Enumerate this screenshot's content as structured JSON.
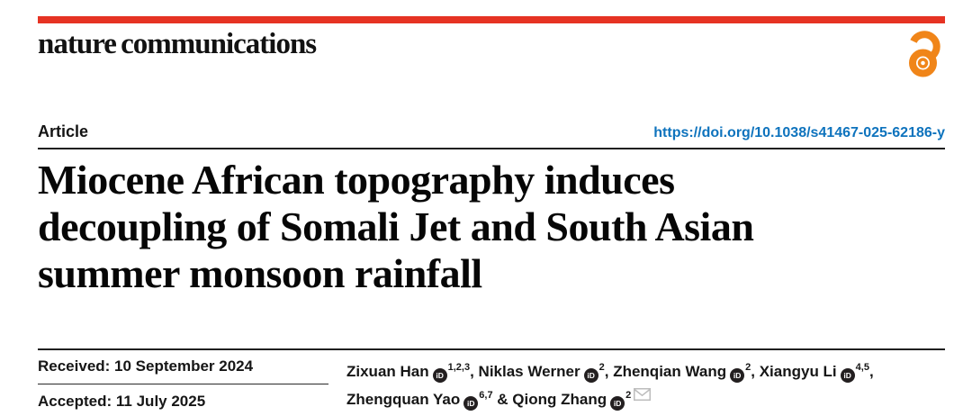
{
  "brand": {
    "journal_name": "nature communications",
    "topbar_color": "#e63323",
    "open_access_color": "#f08519"
  },
  "header": {
    "article_label": "Article",
    "doi_link": "https://doi.org/10.1038/s41467-025-62186-y",
    "doi_color": "#0e73bd"
  },
  "title": {
    "lines": [
      "Miocene African topography induces",
      "decoupling of Somali Jet and South Asian",
      "summer monsoon rainfall"
    ]
  },
  "dates": {
    "received": "Received: 10 September 2024",
    "accepted": "Accepted: 11 July 2025"
  },
  "authors": {
    "orcid_glyph": "iD",
    "list": [
      {
        "name": "Zixuan Han",
        "orcid": true,
        "sup": "1,2,3",
        "after": ", "
      },
      {
        "name": "Niklas Werner",
        "orcid": true,
        "sup": "2",
        "after": ", "
      },
      {
        "name": "Zhenqian Wang",
        "orcid": true,
        "sup": "2",
        "after": ", "
      },
      {
        "name": "Xiangyu Li",
        "orcid": true,
        "sup": "4,5",
        "after": ", "
      },
      {
        "name": "Zhengquan Yao",
        "orcid": true,
        "sup": "6,7",
        "after": " & "
      },
      {
        "name": "Qiong Zhang",
        "orcid": true,
        "sup": "2",
        "after": "",
        "email": true
      }
    ]
  }
}
